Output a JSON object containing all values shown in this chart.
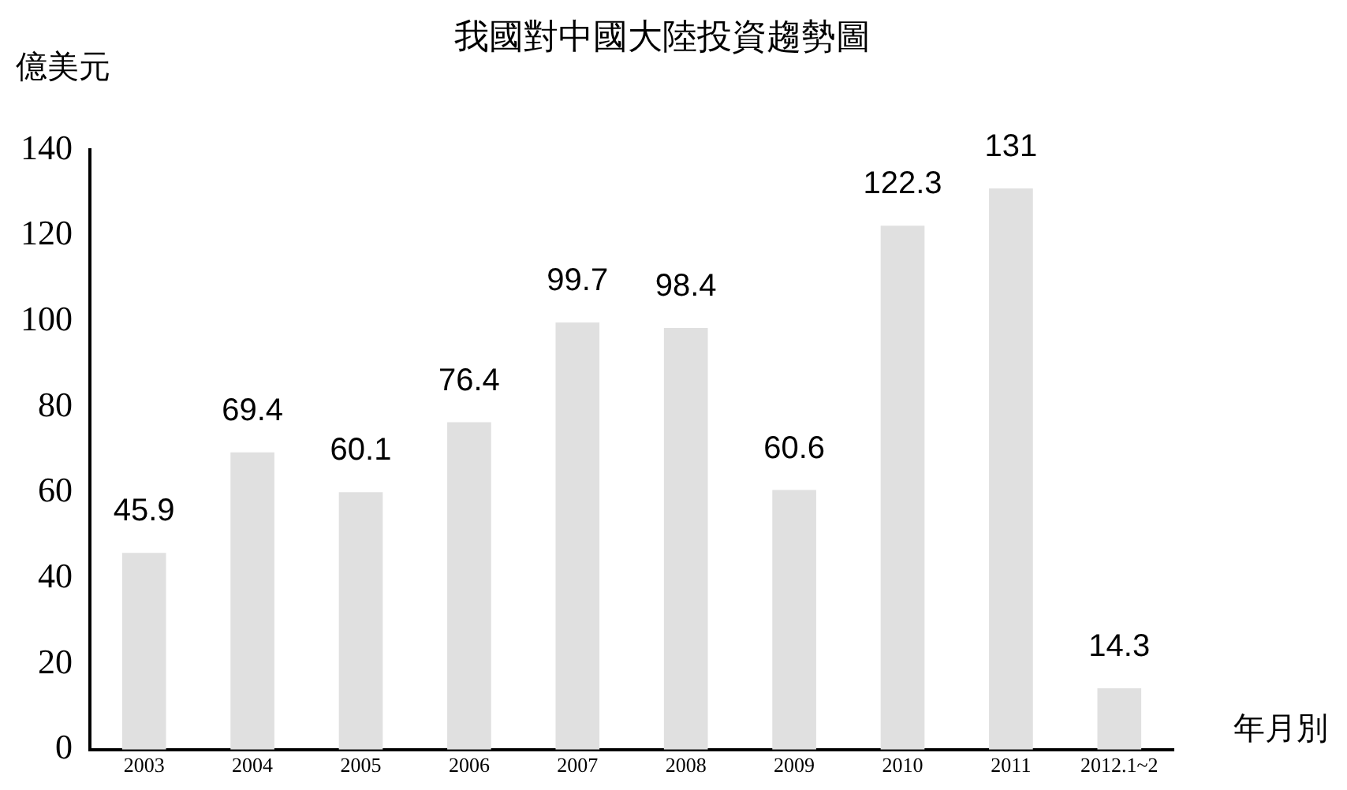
{
  "chart_data": {
    "type": "bar",
    "title": "我國對中國大陸投資趨勢圖",
    "ylabel": "億美元",
    "xlabel": "年月別",
    "categories": [
      "2003",
      "2004",
      "2005",
      "2006",
      "2007",
      "2008",
      "2009",
      "2010",
      "2011",
      "2012.1~2"
    ],
    "values": [
      45.9,
      69.4,
      60.1,
      76.4,
      99.7,
      98.4,
      60.6,
      122.3,
      131,
      14.3
    ],
    "color": "#e0e0e0",
    "ylim": [
      0,
      140
    ],
    "yticks": [
      0,
      20,
      40,
      60,
      80,
      100,
      120,
      140
    ],
    "grid": false,
    "legend": false,
    "data_labels": true
  }
}
